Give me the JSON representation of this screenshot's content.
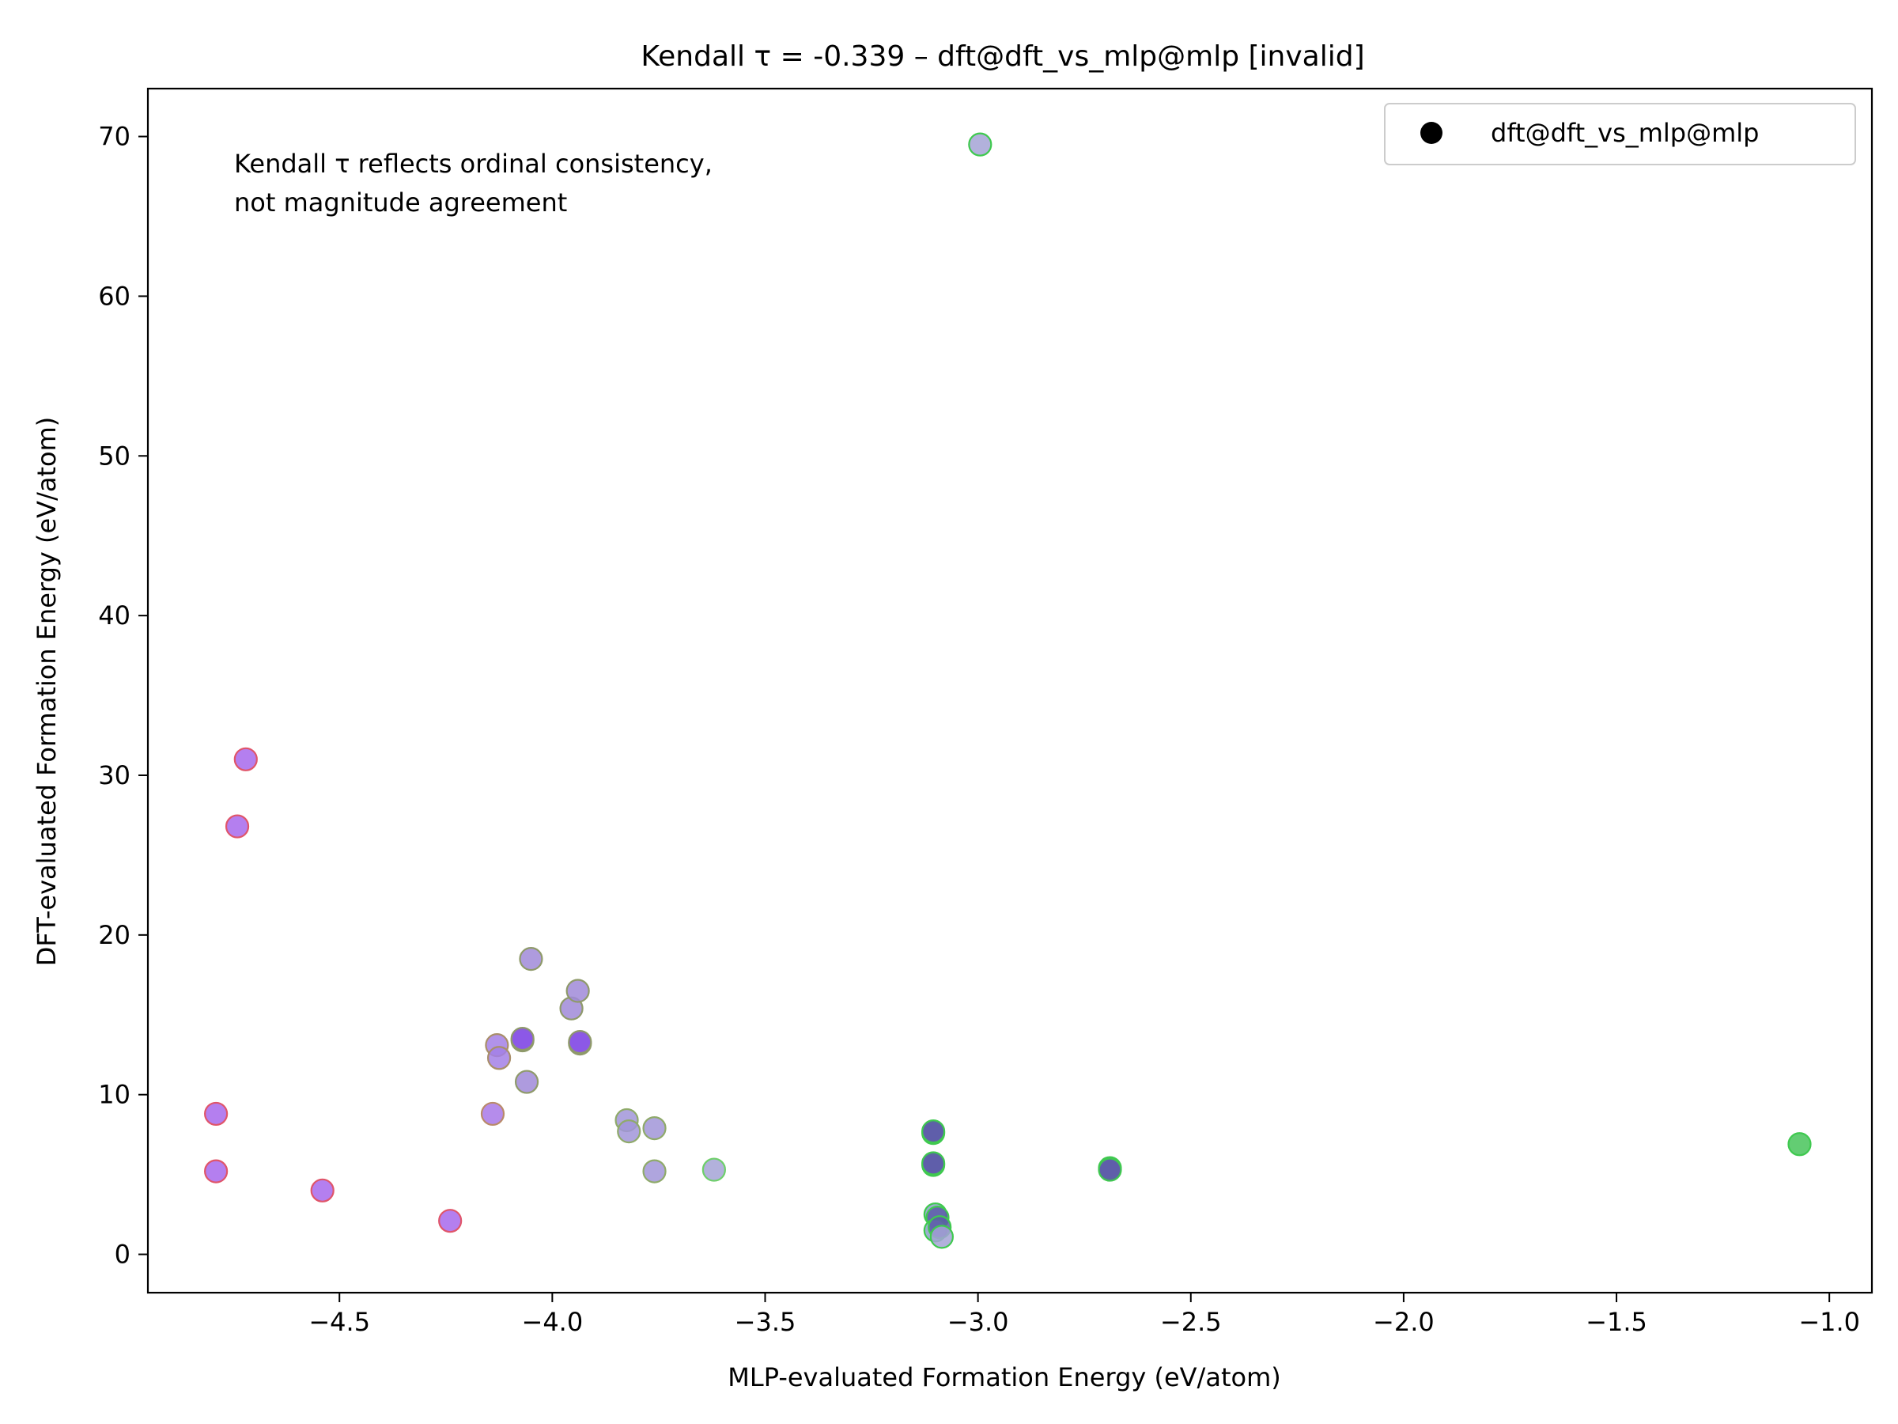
{
  "chart_data": {
    "type": "scatter",
    "title": "Kendall τ = -0.339 – dft@dft_vs_mlp@mlp [invalid]",
    "xlabel": "MLP-evaluated Formation Energy (eV/atom)",
    "ylabel": "DFT-evaluated Formation Energy (eV/atom)",
    "xlim": [
      -4.95,
      -0.9
    ],
    "ylim": [
      -2.4,
      73.0
    ],
    "xticks": [
      -4.5,
      -4.0,
      -3.5,
      -3.0,
      -2.5,
      -2.0,
      -1.5,
      -1.0
    ],
    "xtick_labels": [
      "−4.5",
      "−4.0",
      "−3.5",
      "−3.0",
      "−2.5",
      "−2.0",
      "−1.5",
      "−1.0"
    ],
    "yticks": [
      0,
      10,
      20,
      30,
      40,
      50,
      60,
      70
    ],
    "ytick_labels": [
      "0",
      "10",
      "20",
      "30",
      "40",
      "50",
      "60",
      "70"
    ],
    "grid": false,
    "legend": {
      "placement": "top-right",
      "entries": [
        "dft@dft_vs_mlp@mlp"
      ]
    },
    "annotation": [
      "Kendall τ reflects ordinal consistency,",
      "not magnitude agreement"
    ],
    "colors": {
      "red_edge": "#e0556a",
      "green_edge": "#3fc94f",
      "olive_edge": "#8f9a6a",
      "purple_fill": "#9b5fe8",
      "lavender_fill": "#a195d8",
      "green_fill": "#48c45a",
      "navy_fill": "#5c5aa8"
    },
    "series": [
      {
        "points": [
          {
            "x": -4.72,
            "y": 31.0,
            "fill": "#a768ec",
            "edge": "#e0556a"
          },
          {
            "x": -4.74,
            "y": 26.8,
            "fill": "#a768ec",
            "edge": "#e0556a"
          },
          {
            "x": -4.79,
            "y": 8.8,
            "fill": "#a768ec",
            "edge": "#e0556a"
          },
          {
            "x": -4.79,
            "y": 5.2,
            "fill": "#a768ec",
            "edge": "#e0556a"
          },
          {
            "x": -4.54,
            "y": 4.0,
            "fill": "#a768ec",
            "edge": "#e0556a"
          },
          {
            "x": -4.24,
            "y": 2.1,
            "fill": "#a768ec",
            "edge": "#e0556a"
          },
          {
            "x": -4.14,
            "y": 8.8,
            "fill": "#a878e8",
            "edge": "#b98a6a"
          },
          {
            "x": -4.13,
            "y": 13.1,
            "fill": "#a380e6",
            "edge": "#a98f6a"
          },
          {
            "x": -4.125,
            "y": 12.3,
            "fill": "#a380e6",
            "edge": "#a98f6a"
          },
          {
            "x": -4.07,
            "y": 13.4,
            "fill": "#8a55e6",
            "edge": "#8f9a6a"
          },
          {
            "x": -4.07,
            "y": 13.5,
            "fill": "#8a55e6",
            "edge": "#8f9a6a"
          },
          {
            "x": -4.06,
            "y": 10.8,
            "fill": "#a08ad8",
            "edge": "#8f9a6a"
          },
          {
            "x": -4.05,
            "y": 18.5,
            "fill": "#a08ad8",
            "edge": "#8f9a6a"
          },
          {
            "x": -3.955,
            "y": 15.4,
            "fill": "#a08ad8",
            "edge": "#8f9a6a"
          },
          {
            "x": -3.94,
            "y": 16.5,
            "fill": "#a08ad8",
            "edge": "#8f9a6a"
          },
          {
            "x": -3.935,
            "y": 13.2,
            "fill": "#8a55e6",
            "edge": "#8f9a6a"
          },
          {
            "x": -3.935,
            "y": 13.3,
            "fill": "#8a55e6",
            "edge": "#8f9a6a"
          },
          {
            "x": -3.825,
            "y": 8.4,
            "fill": "#a195d8",
            "edge": "#8faa6a"
          },
          {
            "x": -3.82,
            "y": 7.7,
            "fill": "#a195d8",
            "edge": "#8faa6a"
          },
          {
            "x": -3.76,
            "y": 7.9,
            "fill": "#a195d8",
            "edge": "#8faa6a"
          },
          {
            "x": -3.76,
            "y": 5.2,
            "fill": "#a195d8",
            "edge": "#8faa6a"
          },
          {
            "x": -3.62,
            "y": 5.3,
            "fill": "#a5a3d6",
            "edge": "#6ecf6a"
          },
          {
            "x": -2.995,
            "y": 69.5,
            "fill": "#a5a3d6",
            "edge": "#3fc94f"
          },
          {
            "x": -3.105,
            "y": 7.6,
            "fill": "#5c5aa8",
            "edge": "#3fc94f"
          },
          {
            "x": -3.105,
            "y": 7.7,
            "fill": "#5c5aa8",
            "edge": "#3fc94f"
          },
          {
            "x": -3.105,
            "y": 5.6,
            "fill": "#5c5aa8",
            "edge": "#3fc94f"
          },
          {
            "x": -3.105,
            "y": 5.7,
            "fill": "#5c5aa8",
            "edge": "#3fc94f"
          },
          {
            "x": -3.1,
            "y": 2.5,
            "fill": "#8aa0c8",
            "edge": "#3fc94f"
          },
          {
            "x": -3.095,
            "y": 2.3,
            "fill": "#5c5aa8",
            "edge": "#3fc94f"
          },
          {
            "x": -3.1,
            "y": 1.5,
            "fill": "#8aa0c8",
            "edge": "#3fc94f"
          },
          {
            "x": -3.09,
            "y": 1.7,
            "fill": "#5c5aa8",
            "edge": "#3fc94f"
          },
          {
            "x": -3.085,
            "y": 1.1,
            "fill": "#a5a3d6",
            "edge": "#3fc94f"
          },
          {
            "x": -2.69,
            "y": 5.4,
            "fill": "#5c5aa8",
            "edge": "#3fc94f"
          },
          {
            "x": -2.69,
            "y": 5.3,
            "fill": "#5c5aa8",
            "edge": "#3fc94f"
          },
          {
            "x": -1.07,
            "y": 6.9,
            "fill": "#48c45a",
            "edge": "#3fc94f"
          }
        ]
      }
    ]
  }
}
